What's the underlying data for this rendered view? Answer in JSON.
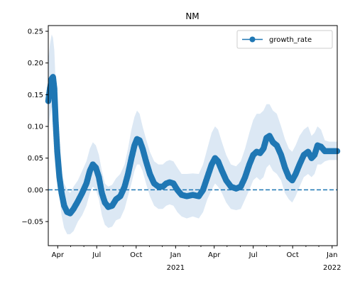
{
  "chart_data": {
    "type": "line",
    "title": "NM",
    "xlabel": "",
    "ylabel": "",
    "x_range": [
      "2020-03-10",
      "2022-01-13"
    ],
    "ylim": [
      -0.088,
      0.259
    ],
    "y_ticks": [
      -0.05,
      0.0,
      0.05,
      0.1,
      0.15,
      0.2,
      0.25
    ],
    "y_tick_labels": [
      "−0.05",
      "0.00",
      "0.05",
      "0.10",
      "0.15",
      "0.20",
      "0.25"
    ],
    "x_ticks": [
      {
        "date": "2020-04-01",
        "label": "Apr",
        "sublabel": ""
      },
      {
        "date": "2020-07-01",
        "label": "Jul",
        "sublabel": ""
      },
      {
        "date": "2020-10-01",
        "label": "Oct",
        "sublabel": ""
      },
      {
        "date": "2021-01-01",
        "label": "Jan",
        "sublabel": "2021"
      },
      {
        "date": "2021-04-01",
        "label": "Apr",
        "sublabel": ""
      },
      {
        "date": "2021-07-01",
        "label": "Jul",
        "sublabel": ""
      },
      {
        "date": "2021-10-01",
        "label": "Oct",
        "sublabel": ""
      },
      {
        "date": "2022-01-01",
        "label": "Jan",
        "sublabel": "2022"
      }
    ],
    "minor_ticks": true,
    "grid": false,
    "legend": {
      "position": "top-right",
      "entries": [
        "growth_rate"
      ]
    },
    "reference_line": {
      "y": 0.0,
      "style": "dashed"
    },
    "series": [
      {
        "name": "growth_rate",
        "color": "#1f77b4",
        "band_color": "#dce8f4",
        "points": [
          {
            "x": "2020-03-10",
            "y": 0.14,
            "lo": 0.095,
            "hi": 0.205
          },
          {
            "x": "2020-03-14",
            "y": 0.16,
            "lo": 0.115,
            "hi": 0.23
          },
          {
            "x": "2020-03-18",
            "y": 0.175,
            "lo": 0.13,
            "hi": 0.245
          },
          {
            "x": "2020-03-21",
            "y": 0.178,
            "lo": 0.13,
            "hi": 0.24
          },
          {
            "x": "2020-03-24",
            "y": 0.16,
            "lo": 0.115,
            "hi": 0.22
          },
          {
            "x": "2020-03-27",
            "y": 0.11,
            "lo": 0.075,
            "hi": 0.17
          },
          {
            "x": "2020-03-31",
            "y": 0.06,
            "lo": 0.03,
            "hi": 0.11
          },
          {
            "x": "2020-04-05",
            "y": 0.02,
            "lo": -0.01,
            "hi": 0.06
          },
          {
            "x": "2020-04-10",
            "y": -0.005,
            "lo": -0.04,
            "hi": 0.03
          },
          {
            "x": "2020-04-16",
            "y": -0.025,
            "lo": -0.06,
            "hi": 0.01
          },
          {
            "x": "2020-04-23",
            "y": -0.035,
            "lo": -0.07,
            "hi": 0.0
          },
          {
            "x": "2020-04-30",
            "y": -0.037,
            "lo": -0.07,
            "hi": -0.005
          },
          {
            "x": "2020-05-08",
            "y": -0.03,
            "lo": -0.065,
            "hi": 0.005
          },
          {
            "x": "2020-05-18",
            "y": -0.018,
            "lo": -0.05,
            "hi": 0.015
          },
          {
            "x": "2020-05-28",
            "y": -0.005,
            "lo": -0.04,
            "hi": 0.03
          },
          {
            "x": "2020-06-07",
            "y": 0.01,
            "lo": -0.025,
            "hi": 0.045
          },
          {
            "x": "2020-06-15",
            "y": 0.03,
            "lo": -0.005,
            "hi": 0.065
          },
          {
            "x": "2020-06-22",
            "y": 0.04,
            "lo": 0.005,
            "hi": 0.075
          },
          {
            "x": "2020-06-29",
            "y": 0.035,
            "lo": 0.0,
            "hi": 0.07
          },
          {
            "x": "2020-07-06",
            "y": 0.02,
            "lo": -0.015,
            "hi": 0.055
          },
          {
            "x": "2020-07-13",
            "y": -0.005,
            "lo": -0.04,
            "hi": 0.03
          },
          {
            "x": "2020-07-20",
            "y": -0.02,
            "lo": -0.055,
            "hi": 0.01
          },
          {
            "x": "2020-07-28",
            "y": -0.027,
            "lo": -0.06,
            "hi": 0.005
          },
          {
            "x": "2020-08-06",
            "y": -0.025,
            "lo": -0.058,
            "hi": 0.008
          },
          {
            "x": "2020-08-15",
            "y": -0.015,
            "lo": -0.048,
            "hi": 0.018
          },
          {
            "x": "2020-08-25",
            "y": -0.01,
            "lo": -0.045,
            "hi": 0.025
          },
          {
            "x": "2020-09-04",
            "y": 0.005,
            "lo": -0.03,
            "hi": 0.04
          },
          {
            "x": "2020-09-12",
            "y": 0.025,
            "lo": -0.01,
            "hi": 0.065
          },
          {
            "x": "2020-09-20",
            "y": 0.05,
            "lo": 0.01,
            "hi": 0.095
          },
          {
            "x": "2020-09-27",
            "y": 0.07,
            "lo": 0.03,
            "hi": 0.115
          },
          {
            "x": "2020-10-03",
            "y": 0.08,
            "lo": 0.04,
            "hi": 0.125
          },
          {
            "x": "2020-10-09",
            "y": 0.078,
            "lo": 0.04,
            "hi": 0.12
          },
          {
            "x": "2020-10-16",
            "y": 0.065,
            "lo": 0.03,
            "hi": 0.1
          },
          {
            "x": "2020-10-24",
            "y": 0.045,
            "lo": 0.01,
            "hi": 0.08
          },
          {
            "x": "2020-11-02",
            "y": 0.025,
            "lo": -0.01,
            "hi": 0.06
          },
          {
            "x": "2020-11-12",
            "y": 0.01,
            "lo": -0.025,
            "hi": 0.045
          },
          {
            "x": "2020-11-22",
            "y": 0.005,
            "lo": -0.03,
            "hi": 0.04
          },
          {
            "x": "2020-12-02",
            "y": 0.005,
            "lo": -0.03,
            "hi": 0.04
          },
          {
            "x": "2020-12-10",
            "y": 0.01,
            "lo": -0.025,
            "hi": 0.045
          },
          {
            "x": "2020-12-18",
            "y": 0.012,
            "lo": -0.023,
            "hi": 0.047
          },
          {
            "x": "2020-12-27",
            "y": 0.01,
            "lo": -0.025,
            "hi": 0.045
          },
          {
            "x": "2021-01-05",
            "y": 0.0,
            "lo": -0.035,
            "hi": 0.035
          },
          {
            "x": "2021-01-15",
            "y": -0.008,
            "lo": -0.042,
            "hi": 0.025
          },
          {
            "x": "2021-01-27",
            "y": -0.01,
            "lo": -0.045,
            "hi": 0.025
          },
          {
            "x": "2021-02-10",
            "y": -0.008,
            "lo": -0.042,
            "hi": 0.026
          },
          {
            "x": "2021-02-24",
            "y": -0.01,
            "lo": -0.045,
            "hi": 0.025
          },
          {
            "x": "2021-03-06",
            "y": 0.0,
            "lo": -0.035,
            "hi": 0.04
          },
          {
            "x": "2021-03-16",
            "y": 0.02,
            "lo": -0.015,
            "hi": 0.065
          },
          {
            "x": "2021-03-26",
            "y": 0.04,
            "lo": 0.0,
            "hi": 0.09
          },
          {
            "x": "2021-04-03",
            "y": 0.05,
            "lo": 0.01,
            "hi": 0.1
          },
          {
            "x": "2021-04-10",
            "y": 0.045,
            "lo": 0.005,
            "hi": 0.095
          },
          {
            "x": "2021-04-19",
            "y": 0.03,
            "lo": -0.005,
            "hi": 0.075
          },
          {
            "x": "2021-04-29",
            "y": 0.015,
            "lo": -0.02,
            "hi": 0.055
          },
          {
            "x": "2021-05-10",
            "y": 0.005,
            "lo": -0.03,
            "hi": 0.04
          },
          {
            "x": "2021-05-22",
            "y": 0.002,
            "lo": -0.032,
            "hi": 0.037
          },
          {
            "x": "2021-06-02",
            "y": 0.005,
            "lo": -0.03,
            "hi": 0.045
          },
          {
            "x": "2021-06-12",
            "y": 0.02,
            "lo": -0.015,
            "hi": 0.065
          },
          {
            "x": "2021-06-22",
            "y": 0.04,
            "lo": 0.0,
            "hi": 0.09
          },
          {
            "x": "2021-07-01",
            "y": 0.055,
            "lo": 0.015,
            "hi": 0.11
          },
          {
            "x": "2021-07-09",
            "y": 0.06,
            "lo": 0.02,
            "hi": 0.12
          },
          {
            "x": "2021-07-17",
            "y": 0.058,
            "lo": 0.015,
            "hi": 0.12
          },
          {
            "x": "2021-07-25",
            "y": 0.065,
            "lo": 0.02,
            "hi": 0.125
          },
          {
            "x": "2021-08-01",
            "y": 0.082,
            "lo": 0.035,
            "hi": 0.135
          },
          {
            "x": "2021-08-08",
            "y": 0.085,
            "lo": 0.04,
            "hi": 0.135
          },
          {
            "x": "2021-08-16",
            "y": 0.075,
            "lo": 0.03,
            "hi": 0.125
          },
          {
            "x": "2021-08-25",
            "y": 0.07,
            "lo": 0.025,
            "hi": 0.12
          },
          {
            "x": "2021-09-04",
            "y": 0.055,
            "lo": 0.015,
            "hi": 0.1
          },
          {
            "x": "2021-09-13",
            "y": 0.035,
            "lo": -0.005,
            "hi": 0.08
          },
          {
            "x": "2021-09-22",
            "y": 0.02,
            "lo": -0.015,
            "hi": 0.065
          },
          {
            "x": "2021-09-30",
            "y": 0.015,
            "lo": -0.02,
            "hi": 0.06
          },
          {
            "x": "2021-10-08",
            "y": 0.025,
            "lo": -0.01,
            "hi": 0.07
          },
          {
            "x": "2021-10-17",
            "y": 0.04,
            "lo": 0.005,
            "hi": 0.085
          },
          {
            "x": "2021-10-27",
            "y": 0.055,
            "lo": 0.02,
            "hi": 0.095
          },
          {
            "x": "2021-11-06",
            "y": 0.06,
            "lo": 0.025,
            "hi": 0.1
          },
          {
            "x": "2021-11-14",
            "y": 0.05,
            "lo": 0.02,
            "hi": 0.085
          },
          {
            "x": "2021-11-21",
            "y": 0.055,
            "lo": 0.025,
            "hi": 0.09
          },
          {
            "x": "2021-11-28",
            "y": 0.07,
            "lo": 0.04,
            "hi": 0.1
          },
          {
            "x": "2021-12-06",
            "y": 0.068,
            "lo": 0.04,
            "hi": 0.095
          },
          {
            "x": "2021-12-15",
            "y": 0.061,
            "lo": 0.045,
            "hi": 0.078
          },
          {
            "x": "2021-12-25",
            "y": 0.061,
            "lo": 0.047,
            "hi": 0.076
          },
          {
            "x": "2022-01-04",
            "y": 0.061,
            "lo": 0.047,
            "hi": 0.076
          },
          {
            "x": "2022-01-13",
            "y": 0.061,
            "lo": 0.047,
            "hi": 0.076
          }
        ]
      }
    ]
  }
}
